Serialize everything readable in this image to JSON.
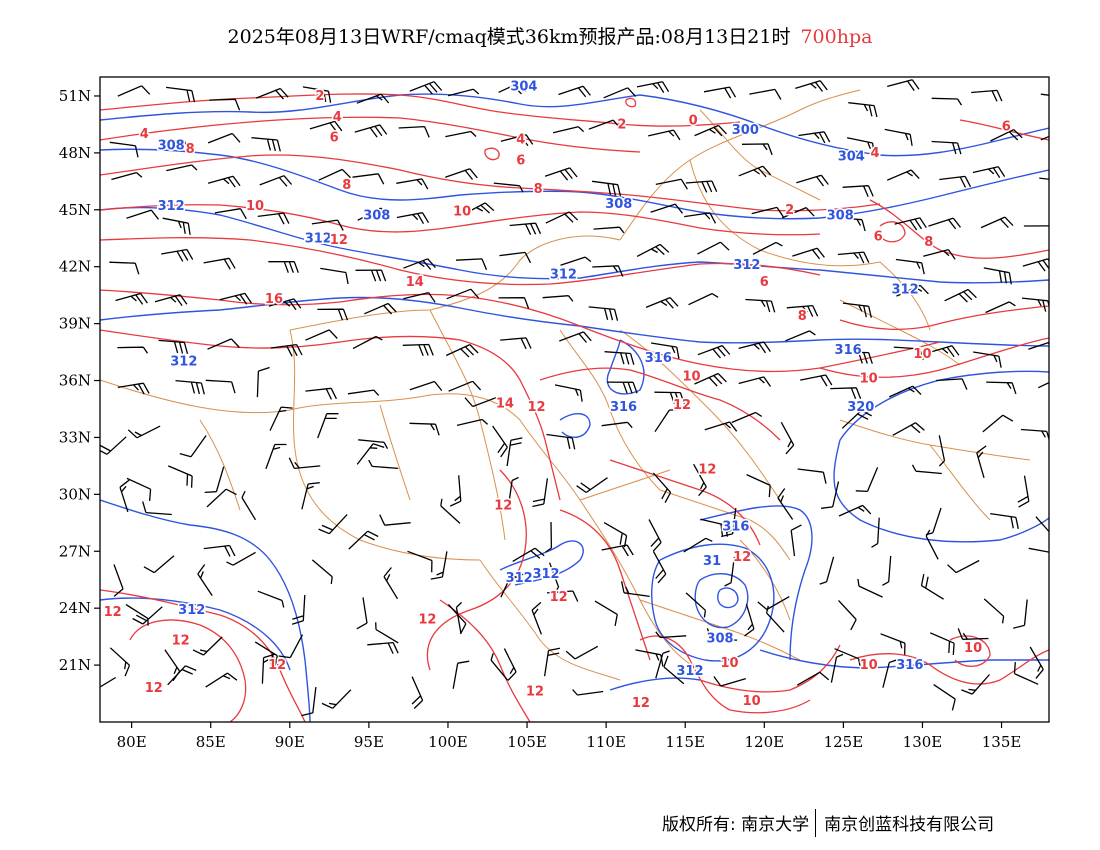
{
  "title": {
    "main": "2025年08月13日WRF/cmaq模式36km预报产品:08月13日21时",
    "level": "700hpa"
  },
  "footer": {
    "copyright": "版权所有: 南京大学",
    "company": "南京创蓝科技有限公司"
  },
  "colors": {
    "geopotential": "#2f55e0",
    "temperature": "#e8393f",
    "border": "#d9904a",
    "barb": "#000000",
    "level_text": "#e8393f"
  },
  "map": {
    "lon_ticks": [
      "80E",
      "85E",
      "90E",
      "95E",
      "100E",
      "105E",
      "110E",
      "115E",
      "120E",
      "125E",
      "130E",
      "135E"
    ],
    "lat_ticks": [
      "51N",
      "48N",
      "45N",
      "42N",
      "39N",
      "36N",
      "33N",
      "30N",
      "27N",
      "24N",
      "21N"
    ],
    "lon_values": [
      80,
      85,
      90,
      95,
      100,
      105,
      110,
      115,
      120,
      125,
      130,
      135
    ],
    "lat_values": [
      51,
      48,
      45,
      42,
      39,
      36,
      33,
      30,
      27,
      24,
      21
    ],
    "lon_range": [
      78,
      138
    ],
    "lat_range": [
      18,
      52
    ]
  },
  "contour_labels": {
    "geopotential": [
      {
        "text": "304",
        "lon": 104.8,
        "lat": 51.5
      },
      {
        "text": "308",
        "lon": 82.5,
        "lat": 48.4
      },
      {
        "text": "300",
        "lon": 118.8,
        "lat": 49.2
      },
      {
        "text": "304",
        "lon": 125.5,
        "lat": 47.8
      },
      {
        "text": "312",
        "lon": 82.5,
        "lat": 45.2
      },
      {
        "text": "308",
        "lon": 95.5,
        "lat": 44.7
      },
      {
        "text": "308",
        "lon": 110.8,
        "lat": 45.3
      },
      {
        "text": "308",
        "lon": 124.8,
        "lat": 44.7
      },
      {
        "text": "312",
        "lon": 91.8,
        "lat": 43.5
      },
      {
        "text": "312",
        "lon": 107.3,
        "lat": 41.6
      },
      {
        "text": "312",
        "lon": 118.9,
        "lat": 42.1
      },
      {
        "text": "312",
        "lon": 128.9,
        "lat": 40.8
      },
      {
        "text": "312",
        "lon": 83.3,
        "lat": 37.0
      },
      {
        "text": "316",
        "lon": 113.3,
        "lat": 37.2
      },
      {
        "text": "316",
        "lon": 125.3,
        "lat": 37.6
      },
      {
        "text": "316",
        "lon": 111.1,
        "lat": 34.6
      },
      {
        "text": "320",
        "lon": 126.1,
        "lat": 34.6
      },
      {
        "text": "316",
        "lon": 118.2,
        "lat": 28.3
      },
      {
        "text": "31",
        "lon": 116.7,
        "lat": 26.5
      },
      {
        "text": "312",
        "lon": 104.5,
        "lat": 25.6
      },
      {
        "text": "312",
        "lon": 106.2,
        "lat": 25.8
      },
      {
        "text": "312",
        "lon": 83.8,
        "lat": 23.9
      },
      {
        "text": "308",
        "lon": 117.2,
        "lat": 22.4
      },
      {
        "text": "312",
        "lon": 115.3,
        "lat": 20.7
      },
      {
        "text": "316",
        "lon": 129.2,
        "lat": 21.0
      }
    ],
    "temperature": [
      {
        "text": "2",
        "lon": 91.9,
        "lat": 51.0
      },
      {
        "text": "4",
        "lon": 93.0,
        "lat": 49.9
      },
      {
        "text": "4",
        "lon": 80.8,
        "lat": 49.0
      },
      {
        "text": "6",
        "lon": 92.8,
        "lat": 48.8
      },
      {
        "text": "8",
        "lon": 83.7,
        "lat": 48.2
      },
      {
        "text": "2",
        "lon": 111.0,
        "lat": 49.5
      },
      {
        "text": "0",
        "lon": 115.5,
        "lat": 49.7
      },
      {
        "text": "4",
        "lon": 104.6,
        "lat": 48.7
      },
      {
        "text": "6",
        "lon": 104.6,
        "lat": 47.6
      },
      {
        "text": "8",
        "lon": 93.6,
        "lat": 46.3
      },
      {
        "text": "8",
        "lon": 105.7,
        "lat": 46.1
      },
      {
        "text": "4",
        "lon": 127.0,
        "lat": 48.0
      },
      {
        "text": "6",
        "lon": 135.3,
        "lat": 49.4
      },
      {
        "text": "10",
        "lon": 87.8,
        "lat": 45.2
      },
      {
        "text": "10",
        "lon": 100.9,
        "lat": 44.9
      },
      {
        "text": "2",
        "lon": 121.6,
        "lat": 45.0
      },
      {
        "text": "12",
        "lon": 93.1,
        "lat": 43.4
      },
      {
        "text": "6",
        "lon": 127.2,
        "lat": 43.6
      },
      {
        "text": "8",
        "lon": 130.4,
        "lat": 43.3
      },
      {
        "text": "14",
        "lon": 97.9,
        "lat": 41.2
      },
      {
        "text": "6",
        "lon": 120.0,
        "lat": 41.2
      },
      {
        "text": "16",
        "lon": 89.0,
        "lat": 40.3
      },
      {
        "text": "8",
        "lon": 122.4,
        "lat": 39.4
      },
      {
        "text": "10",
        "lon": 130.0,
        "lat": 37.4
      },
      {
        "text": "10",
        "lon": 115.4,
        "lat": 36.2
      },
      {
        "text": "10",
        "lon": 126.6,
        "lat": 36.1
      },
      {
        "text": "14",
        "lon": 103.6,
        "lat": 34.8
      },
      {
        "text": "12",
        "lon": 105.6,
        "lat": 34.6
      },
      {
        "text": "12",
        "lon": 114.8,
        "lat": 34.7
      },
      {
        "text": "12",
        "lon": 116.4,
        "lat": 31.3
      },
      {
        "text": "12",
        "lon": 103.5,
        "lat": 29.4
      },
      {
        "text": "12",
        "lon": 118.6,
        "lat": 26.7
      },
      {
        "text": "12",
        "lon": 107.0,
        "lat": 24.6
      },
      {
        "text": "12",
        "lon": 98.7,
        "lat": 23.4
      },
      {
        "text": "12",
        "lon": 78.8,
        "lat": 23.8
      },
      {
        "text": "12",
        "lon": 83.1,
        "lat": 22.3
      },
      {
        "text": "12",
        "lon": 89.2,
        "lat": 21.0
      },
      {
        "text": "12",
        "lon": 81.4,
        "lat": 19.8
      },
      {
        "text": "12",
        "lon": 105.5,
        "lat": 19.6
      },
      {
        "text": "12",
        "lon": 112.2,
        "lat": 19.0
      },
      {
        "text": "10",
        "lon": 117.8,
        "lat": 21.1
      },
      {
        "text": "10",
        "lon": 119.2,
        "lat": 19.1
      },
      {
        "text": "10",
        "lon": 126.6,
        "lat": 21.0
      },
      {
        "text": "10",
        "lon": 133.2,
        "lat": 21.9
      }
    ]
  }
}
